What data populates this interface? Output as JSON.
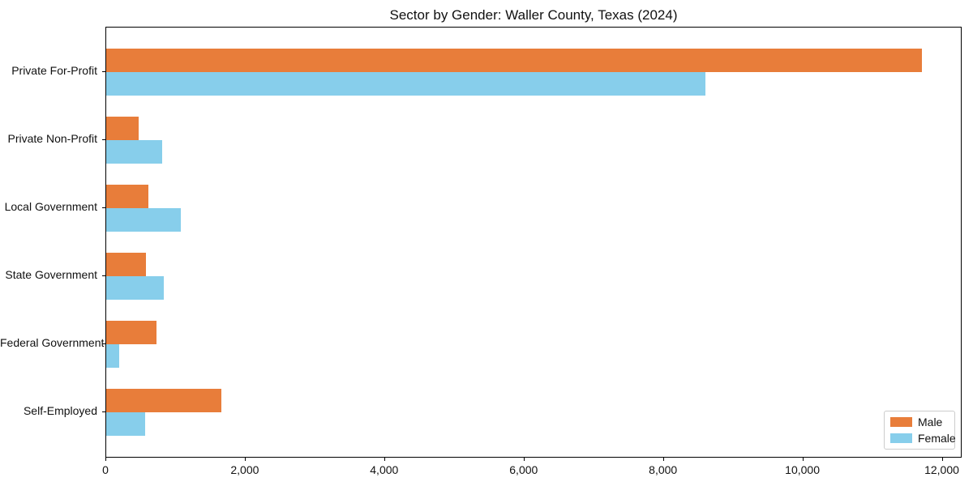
{
  "figure": {
    "title": "Sector by Gender: Waller County, Texas (2024)"
  },
  "chart_data": {
    "type": "bar",
    "orientation": "horizontal",
    "title": "Sector by Gender: Waller County, Texas (2024)",
    "categories": [
      "Private For-Profit",
      "Private Non-Profit",
      "Local Government",
      "State Government",
      "Federal Government",
      "Self-Employed"
    ],
    "series": [
      {
        "name": "Male",
        "color": "#E87D3A",
        "values": [
          11700,
          470,
          600,
          570,
          720,
          1650
        ]
      },
      {
        "name": "Female",
        "color": "#87CEEB",
        "values": [
          8600,
          800,
          1070,
          830,
          180,
          560
        ]
      }
    ],
    "xlabel": "",
    "ylabel": "",
    "xlim": [
      0,
      12285
    ],
    "x_ticks": [
      0,
      2000,
      4000,
      6000,
      8000,
      10000,
      12000
    ],
    "x_tick_labels": [
      "0",
      "2,000",
      "4,000",
      "6,000",
      "8,000",
      "10,000",
      "12,000"
    ],
    "grid": false,
    "legend": {
      "position": "lower right",
      "entries": [
        "Male",
        "Female"
      ]
    },
    "colors": {
      "male": "#E87D3A",
      "female": "#87CEEB",
      "spine": "#000000",
      "text": "#111111",
      "legend_border": "#cccccc"
    }
  }
}
